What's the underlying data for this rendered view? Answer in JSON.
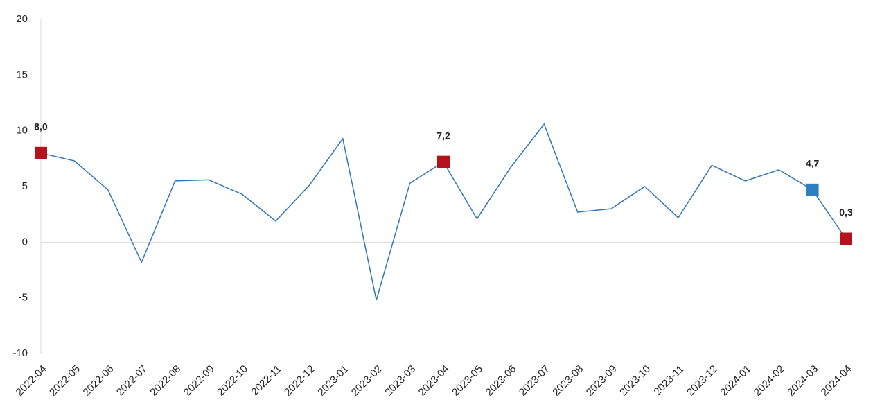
{
  "chart_data": {
    "type": "line",
    "categories": [
      "2022-04",
      "2022-05",
      "2022-06",
      "2022-07",
      "2022-08",
      "2022-09",
      "2022-10",
      "2022-11",
      "2022-12",
      "2023-01",
      "2023-02",
      "2023-03",
      "2023-04",
      "2023-05",
      "2023-06",
      "2023-07",
      "2023-08",
      "2023-09",
      "2023-10",
      "2023-11",
      "2023-12",
      "2024-01",
      "2024-02",
      "2024-03",
      "2024-04"
    ],
    "series": [
      {
        "color": "#2e75b6",
        "values": [
          8.0,
          7.3,
          4.7,
          -1.8,
          5.5,
          5.6,
          4.3,
          1.9,
          5.1,
          9.3,
          -5.2,
          5.3,
          7.2,
          2.1,
          6.7,
          10.6,
          2.7,
          3.0,
          5.0,
          2.2,
          6.9,
          5.5,
          6.5,
          4.7,
          0.3
        ],
        "value_labels": [
          "8,0",
          null,
          null,
          null,
          null,
          null,
          null,
          null,
          null,
          null,
          null,
          null,
          "7,2",
          null,
          null,
          null,
          null,
          null,
          null,
          null,
          null,
          null,
          null,
          "4,7",
          "0,3"
        ],
        "marker_colors": [
          "#b5121b",
          null,
          null,
          null,
          null,
          null,
          null,
          null,
          null,
          null,
          null,
          null,
          "#b5121b",
          null,
          null,
          null,
          null,
          null,
          null,
          null,
          null,
          null,
          null,
          "#2e7fc1",
          "#b5121b"
        ]
      }
    ],
    "ylim": [
      -10,
      20
    ],
    "yticks": [
      -10,
      -5,
      0,
      5,
      10,
      15,
      20
    ],
    "grid": false
  }
}
